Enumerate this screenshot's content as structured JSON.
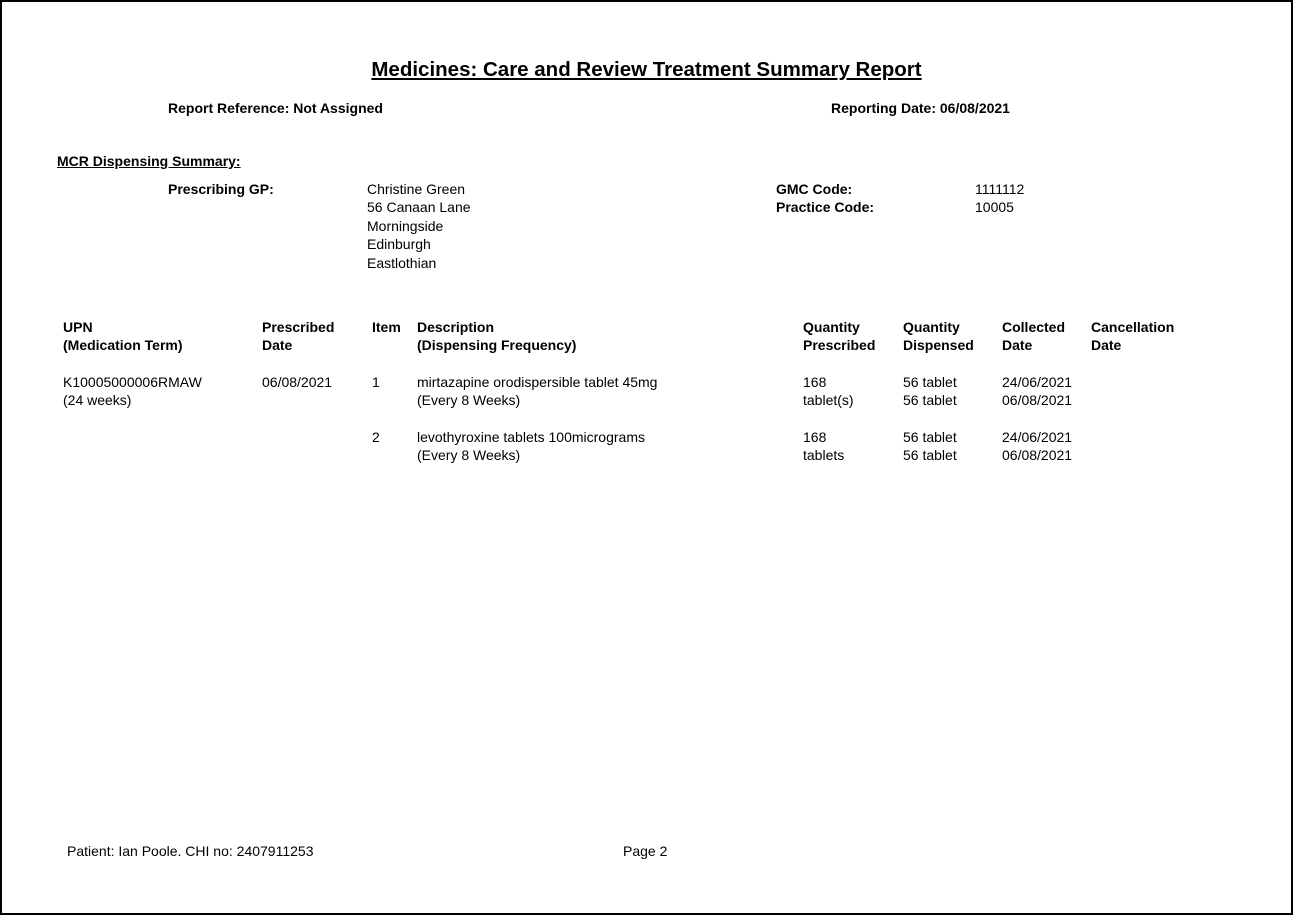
{
  "report": {
    "title": "Medicines: Care and Review Treatment Summary Report",
    "reference": "Report Reference: Not Assigned",
    "reporting_date": "Reporting Date: 06/08/2021"
  },
  "summary": {
    "heading": "MCR Dispensing Summary:",
    "gp_label": "Prescribing GP:",
    "gp_name": "Christine Green",
    "gp_address": [
      " 56 Canaan Lane",
      "Morningside",
      "Edinburgh",
      "Eastlothian"
    ],
    "gmc_label": "GMC Code:",
    "gmc_value": "1111112",
    "practice_label": "Practice Code:",
    "practice_value": "10005"
  },
  "table": {
    "headers": [
      [
        "UPN",
        "(Medication Term)"
      ],
      [
        "Prescribed",
        "Date"
      ],
      [
        "Item",
        ""
      ],
      [
        "Description",
        "(Dispensing Frequency)"
      ],
      [
        "Quantity",
        "Prescribed"
      ],
      [
        "Quantity",
        "Dispensed"
      ],
      [
        "Collected",
        "Date"
      ],
      [
        "Cancellation",
        "Date"
      ]
    ],
    "upn": "K10005000006RMAW",
    "term": "(24 weeks)",
    "prescribed_date": "06/08/2021",
    "items": [
      {
        "item": "1",
        "description": "mirtazapine orodispersible tablet 45mg",
        "frequency": "(Every 8 Weeks)",
        "qty_prescribed": [
          "168",
          "tablet(s)"
        ],
        "qty_dispensed": [
          "56 tablet",
          "56 tablet"
        ],
        "collected": [
          "24/06/2021",
          "06/08/2021"
        ]
      },
      {
        "item": "2",
        "description": "levothyroxine tablets 100micrograms",
        "frequency": "(Every 8 Weeks)",
        "qty_prescribed": [
          "168",
          "tablets"
        ],
        "qty_dispensed": [
          "56 tablet",
          "56 tablet"
        ],
        "collected": [
          "24/06/2021",
          "06/08/2021"
        ]
      }
    ]
  },
  "footer": {
    "patient": "Patient: Ian Poole. CHI no: 2407911253",
    "page": "Page 2"
  }
}
